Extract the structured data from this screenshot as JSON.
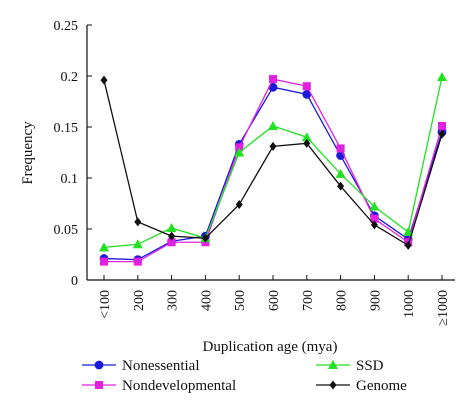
{
  "chart_data": {
    "type": "line",
    "title": "",
    "xlabel": "Duplication age (mya)",
    "ylabel": "Frequency",
    "categories": [
      "<100",
      "200",
      "300",
      "400",
      "500",
      "600",
      "700",
      "800",
      "900",
      "1000",
      "≥1000"
    ],
    "ylim": [
      0,
      0.25
    ],
    "yticks": [
      "0",
      "0.05",
      "0.1",
      "0.15",
      "0.2",
      "0.25"
    ],
    "ytick_values": [
      0,
      0.05,
      0.1,
      0.15,
      0.2,
      0.25
    ],
    "grid": false,
    "legend_placement": "bottom",
    "series": [
      {
        "name": "Nonessential",
        "color": "#1a1adb",
        "marker": "circle",
        "values": [
          0.021,
          0.02,
          0.038,
          0.043,
          0.133,
          0.189,
          0.182,
          0.122,
          0.063,
          0.04,
          0.145
        ]
      },
      {
        "name": "Nondevelopmental",
        "color": "#e022e0",
        "marker": "square",
        "values": [
          0.018,
          0.018,
          0.037,
          0.037,
          0.13,
          0.197,
          0.19,
          0.129,
          0.06,
          0.037,
          0.151
        ]
      },
      {
        "name": "SSD",
        "color": "#22e022",
        "marker": "triangle",
        "values": [
          0.032,
          0.035,
          0.051,
          0.041,
          0.125,
          0.151,
          0.14,
          0.104,
          0.072,
          0.047,
          0.199
        ]
      },
      {
        "name": "Genome",
        "color": "#111111",
        "marker": "diamond",
        "values": [
          0.196,
          0.057,
          0.043,
          0.041,
          0.074,
          0.131,
          0.134,
          0.092,
          0.054,
          0.034,
          0.143
        ]
      }
    ]
  }
}
